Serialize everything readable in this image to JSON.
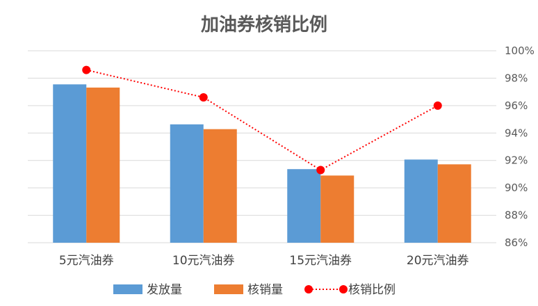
{
  "chart_data": {
    "type": "bar",
    "title": "加油券核销比例",
    "categories": [
      "5元汽油券",
      "10元汽油券",
      "15元汽油券",
      "20元汽油券"
    ],
    "series": [
      {
        "name": "发放量",
        "type": "bar",
        "axis": "left",
        "color": "#5b9bd5",
        "values": [
          99,
          74,
          46,
          52
        ]
      },
      {
        "name": "核销量",
        "type": "bar",
        "axis": "left",
        "color": "#ed7d31",
        "values": [
          97,
          71,
          42,
          49
        ]
      },
      {
        "name": "核销比例",
        "type": "line",
        "axis": "right",
        "color": "#ff0000",
        "line_style": "dotted",
        "marker": "circle",
        "values": [
          0.986,
          0.966,
          0.913,
          0.96
        ]
      }
    ],
    "y_left": {
      "range": [
        0,
        120
      ],
      "tick_labels_visible": false
    },
    "y_right": {
      "range": [
        0.86,
        1.0
      ],
      "ticks": [
        "86%",
        "88%",
        "90%",
        "92%",
        "94%",
        "96%",
        "98%",
        "100%"
      ]
    },
    "grid": true,
    "legend": "bottom"
  }
}
